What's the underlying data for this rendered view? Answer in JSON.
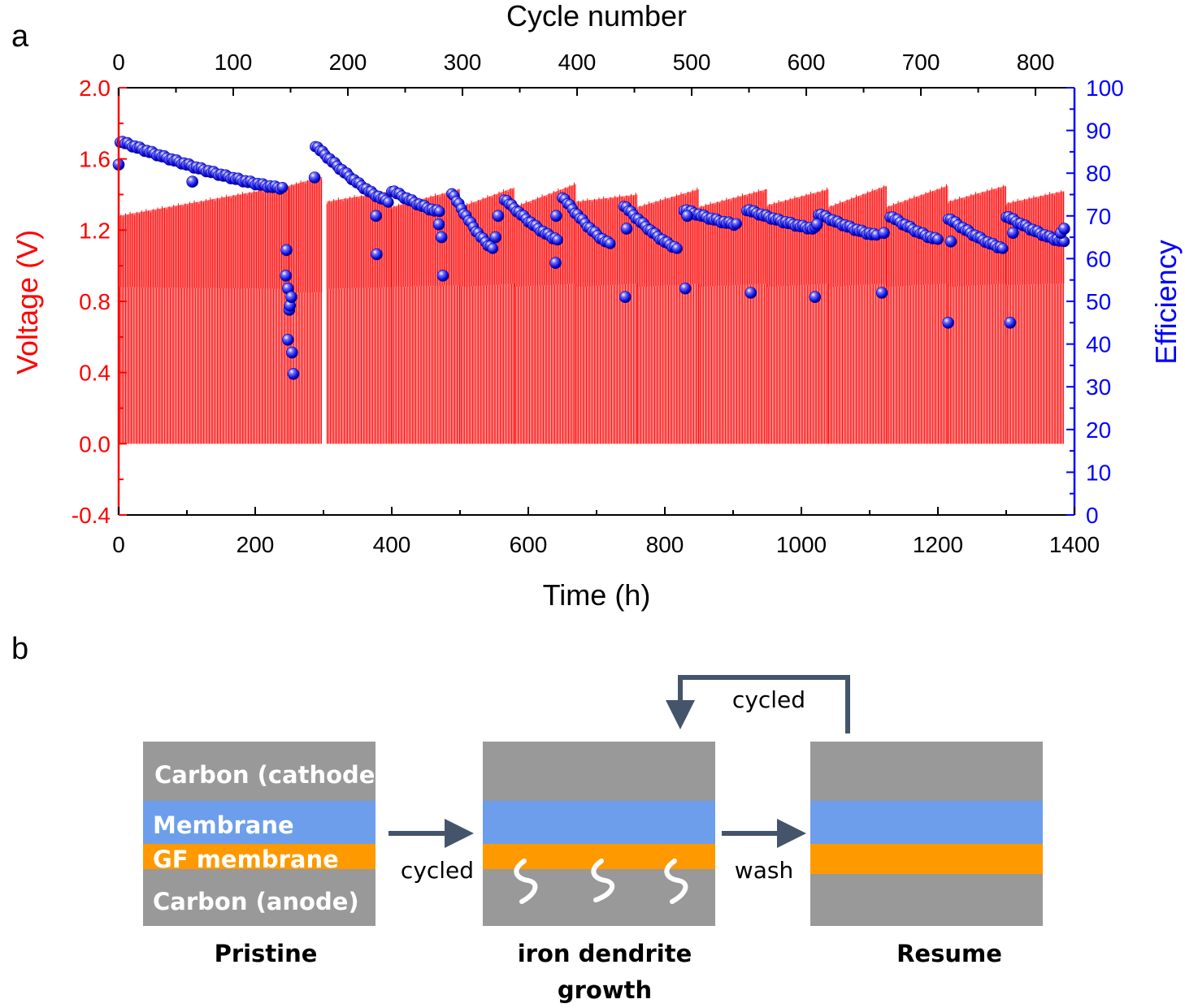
{
  "panel_a": {
    "letter": "a",
    "chart_data": {
      "type": "line",
      "xlabel": "Time (h)",
      "top_xlabel": "Cycle number",
      "ylabel_left": "Voltage (V)",
      "ylabel_right": "Efficiency",
      "xlim": [
        0,
        1400
      ],
      "ylim_left": [
        -0.4,
        2.0
      ],
      "ylim_right": [
        0,
        100
      ],
      "top_xlim": [
        0,
        834
      ],
      "x_ticks": [
        "0",
        "200",
        "400",
        "600",
        "800",
        "1000",
        "1200",
        "1400"
      ],
      "top_x_ticks": [
        "0",
        "100",
        "200",
        "300",
        "400",
        "500",
        "600",
        "700",
        "800"
      ],
      "y_left_ticks": [
        "-0.4",
        "0.0",
        "0.4",
        "0.8",
        "1.2",
        "1.6",
        "2.0"
      ],
      "y_right_ticks": [
        "0",
        "10",
        "20",
        "30",
        "40",
        "50",
        "60",
        "70",
        "80",
        "90",
        "100"
      ],
      "grid": false,
      "colors": {
        "voltage": "#ff0000",
        "efficiency": "#0000ff",
        "axis_left": "#ff0000",
        "axis_right": "#0000ff"
      },
      "series": [
        {
          "axis": "left",
          "kind": "cycling-envelope",
          "x_range": [
            0,
            1385
          ],
          "cycle_period_h": 1.68,
          "discharge_floor_v": 0.0,
          "segments": [
            {
              "x": [
                0,
                250
              ],
              "charge_v": [
                1.28,
                1.45
              ],
              "mid_v": [
                0.88,
                0.87
              ]
            },
            {
              "x": [
                250,
                298
              ],
              "charge_v": [
                1.45,
                1.5
              ],
              "mid_v": [
                0.85,
                0.85
              ]
            },
            {
              "x": [
                305,
                400
              ],
              "charge_v": [
                1.36,
                1.42
              ],
              "mid_v": [
                0.87,
                0.88
              ]
            },
            {
              "x": [
                400,
                500
              ],
              "charge_v": [
                1.33,
                1.43
              ],
              "mid_v": [
                0.88,
                0.89
              ]
            },
            {
              "x": [
                500,
                580
              ],
              "charge_v": [
                1.33,
                1.44
              ],
              "mid_v": [
                0.88,
                0.9
              ]
            },
            {
              "x": [
                580,
                670
              ],
              "charge_v": [
                1.33,
                1.46
              ],
              "mid_v": [
                0.88,
                0.9
              ]
            },
            {
              "x": [
                670,
                760
              ],
              "charge_v": [
                1.36,
                1.4
              ],
              "mid_v": [
                0.88,
                0.9
              ]
            },
            {
              "x": [
                760,
                850
              ],
              "charge_v": [
                1.33,
                1.43
              ],
              "mid_v": [
                0.88,
                0.9
              ]
            },
            {
              "x": [
                850,
                950
              ],
              "charge_v": [
                1.33,
                1.43
              ],
              "mid_v": [
                0.88,
                0.9
              ]
            },
            {
              "x": [
                950,
                1040
              ],
              "charge_v": [
                1.34,
                1.43
              ],
              "mid_v": [
                0.88,
                0.9
              ]
            },
            {
              "x": [
                1040,
                1125
              ],
              "charge_v": [
                1.33,
                1.45
              ],
              "mid_v": [
                0.88,
                0.9
              ]
            },
            {
              "x": [
                1125,
                1215
              ],
              "charge_v": [
                1.33,
                1.45
              ],
              "mid_v": [
                0.88,
                0.9
              ]
            },
            {
              "x": [
                1215,
                1300
              ],
              "charge_v": [
                1.36,
                1.45
              ],
              "mid_v": [
                0.88,
                0.9
              ]
            },
            {
              "x": [
                1300,
                1385
              ],
              "charge_v": [
                1.35,
                1.42
              ],
              "mid_v": [
                0.89,
                0.9
              ]
            }
          ]
        },
        {
          "axis": "right",
          "kind": "scatter-trend",
          "segments": [
            {
              "x": [
                2,
                240
              ],
              "y": [
                87.5,
                76.5
              ]
            },
            {
              "x": [
                288,
                395
              ],
              "y": [
                86.5,
                73.5
              ]
            },
            {
              "x": [
                400,
                470
              ],
              "y": [
                76.0,
                71.0
              ]
            },
            {
              "x": [
                488,
                548
              ],
              "y": [
                75.5,
                62.5
              ]
            },
            {
              "x": [
                565,
                643
              ],
              "y": [
                74.0,
                64.5
              ]
            },
            {
              "x": [
                650,
                720
              ],
              "y": [
                74.5,
                63.5
              ]
            },
            {
              "x": [
                740,
                818
              ],
              "y": [
                72.5,
                62.5
              ]
            },
            {
              "x": [
                828,
                905
              ],
              "y": [
                71.5,
                68.0
              ]
            },
            {
              "x": [
                920,
                1020
              ],
              "y": [
                71.5,
                67.0
              ]
            },
            {
              "x": [
                1025,
                1110
              ],
              "y": [
                70.5,
                65.5
              ]
            },
            {
              "x": [
                1130,
                1200
              ],
              "y": [
                70.0,
                64.5
              ]
            },
            {
              "x": [
                1215,
                1295
              ],
              "y": [
                69.5,
                62.5
              ]
            },
            {
              "x": [
                1300,
                1385
              ],
              "y": [
                70.0,
                64.0
              ]
            }
          ],
          "points": [
            [
              0,
              82
            ],
            [
              108,
              78
            ],
            [
              245,
              56
            ],
            [
              246,
              62
            ],
            [
              248,
              53
            ],
            [
              248,
              41
            ],
            [
              250,
              48
            ],
            [
              251,
              49
            ],
            [
              253,
              51
            ],
            [
              254,
              38
            ],
            [
              256,
              33
            ],
            [
              287,
              79
            ],
            [
              377,
              70
            ],
            [
              378,
              61
            ],
            [
              469,
              68
            ],
            [
              473,
              65
            ],
            [
              475,
              56
            ],
            [
              552,
              65
            ],
            [
              556,
              70
            ],
            [
              640,
              59
            ],
            [
              641,
              70
            ],
            [
              742,
              51
            ],
            [
              744,
              67
            ],
            [
              830,
              53
            ],
            [
              833,
              70
            ],
            [
              926,
              52
            ],
            [
              1020,
              51
            ],
            [
              1023,
              68
            ],
            [
              1118,
              52
            ],
            [
              1121,
              66
            ],
            [
              1215,
              45
            ],
            [
              1219,
              64
            ],
            [
              1306,
              45
            ],
            [
              1310,
              66
            ],
            [
              1380,
              66
            ],
            [
              1385,
              67
            ]
          ]
        }
      ]
    }
  },
  "panel_b": {
    "letter": "b",
    "colors": {
      "carbon": "#999999",
      "membrane": "#6d9eeb",
      "gf_membrane": "#ff9900",
      "arrow": "#44546a",
      "label_light": "#ffffff",
      "label_dark": "#000000"
    },
    "stack_labels": {
      "carbon_cathode": "Carbon (cathode)",
      "membrane": "Membrane",
      "gf_membrane": "GF membrane",
      "carbon_anode": "Carbon (anode)"
    },
    "captions": {
      "pristine": "Pristine",
      "dendrite_line1": "iron dendrite",
      "dendrite_line2": "growth",
      "resume": "Resume"
    },
    "arrow_labels": {
      "cycled_1": "cycled",
      "wash": "wash",
      "cycled_2": "cycled"
    }
  }
}
